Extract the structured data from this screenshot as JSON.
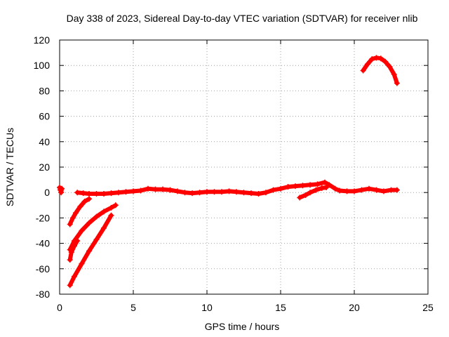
{
  "chart_data": {
    "type": "scatter",
    "title": "Day 338 of 2023, Sidereal Day-to-day VTEC variation (SDTVAR) for receiver nlib",
    "xlabel": "GPS time / hours",
    "ylabel": "SDTVAR / TECUs",
    "xlim": [
      0,
      25
    ],
    "ylim": [
      -80,
      120
    ],
    "xticks": [
      0,
      5,
      10,
      15,
      20,
      25
    ],
    "yticks": [
      -80,
      -60,
      -40,
      -20,
      0,
      20,
      40,
      60,
      80,
      100,
      120
    ],
    "grid": true,
    "legend": "none",
    "colors": {
      "series": "#ff0000",
      "grid": "#a0a0a0",
      "axis": "#000000"
    },
    "marker": "plus",
    "series": [
      {
        "name": "arc-start",
        "x": [
          0.0,
          0.05,
          0.1,
          0.15
        ],
        "y": [
          4,
          2,
          0,
          3
        ]
      },
      {
        "name": "main-baseline",
        "x": [
          1.2,
          1.6,
          2.0,
          2.5,
          3.0,
          3.5,
          4.0,
          4.5,
          5.0,
          5.5,
          6.0,
          6.5,
          7.0,
          7.5,
          8.0,
          8.5,
          9.0,
          9.5,
          10.0,
          10.5,
          11.0,
          11.5,
          12.0,
          12.5,
          13.0,
          13.5,
          14.0,
          14.5,
          15.0,
          15.5,
          16.0,
          16.5,
          17.0,
          17.5,
          18.0,
          18.3,
          18.7,
          19.0,
          19.5,
          20.0,
          20.5,
          21.0,
          21.5,
          22.0,
          22.5,
          22.9
        ],
        "y": [
          0,
          -0.5,
          -1,
          -1,
          -1,
          -0.5,
          0,
          0.5,
          1,
          1.5,
          3,
          2.5,
          2.5,
          2,
          1,
          0,
          -0.5,
          0,
          0.5,
          0.5,
          0.5,
          1,
          0.5,
          0,
          -0.5,
          -1,
          0,
          2,
          3,
          4.5,
          5,
          5.5,
          6,
          6.5,
          8,
          6,
          3,
          1.5,
          1,
          1,
          2,
          3,
          2,
          1,
          2,
          2
        ]
      },
      {
        "name": "arc-16-18",
        "x": [
          16.3,
          16.7,
          17.0,
          17.4,
          17.8,
          18.1
        ],
        "y": [
          -4,
          -2,
          0,
          2,
          3.5,
          4
        ]
      },
      {
        "name": "arc-descent-1",
        "x": [
          0.7,
          0.9,
          1.1,
          1.4,
          1.7,
          2.0
        ],
        "y": [
          -25,
          -20,
          -16,
          -11,
          -7,
          -5
        ]
      },
      {
        "name": "arc-descent-2",
        "x": [
          0.7,
          1.0,
          1.5,
          2.0,
          2.5,
          3.0,
          3.5,
          3.8
        ],
        "y": [
          -45,
          -38,
          -30,
          -24,
          -19,
          -15,
          -12,
          -10
        ]
      },
      {
        "name": "arc-descent-3",
        "x": [
          0.7,
          0.8,
          1.0,
          1.2
        ],
        "y": [
          -53,
          -47,
          -42,
          -38
        ]
      },
      {
        "name": "arc-descent-4",
        "x": [
          0.7,
          1.0,
          1.5,
          2.0,
          2.5,
          3.0,
          3.5
        ],
        "y": [
          -73,
          -66,
          -56,
          -46,
          -37,
          -28,
          -18
        ]
      },
      {
        "name": "arc-high",
        "x": [
          20.6,
          20.9,
          21.2,
          21.5,
          21.8,
          22.1,
          22.4,
          22.7,
          22.9
        ],
        "y": [
          96,
          101,
          105,
          106,
          105.5,
          103,
          99,
          93,
          86
        ]
      }
    ]
  }
}
